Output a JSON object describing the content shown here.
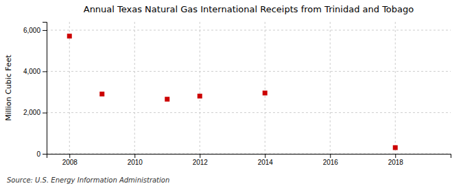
{
  "chart_data": {
    "type": "scatter",
    "title": "Annual Texas Natural Gas International Receipts from Trinidad and Tobago",
    "ylabel": "Million Cubic Feet",
    "source": "Source: U.S. Energy Information Administration",
    "x": [
      2008,
      2009,
      2011,
      2012,
      2014,
      2018
    ],
    "values": [
      5710,
      2900,
      2650,
      2800,
      2950,
      300
    ],
    "xlim": [
      2007.3,
      2019.7
    ],
    "ylim": [
      0,
      6400
    ],
    "xticks": [
      2008,
      2010,
      2012,
      2014,
      2016,
      2018
    ],
    "yticks": [
      0,
      {
        "value": 2000,
        "label": "2,000"
      },
      {
        "value": 4000,
        "label": "4,000"
      },
      {
        "value": 6000,
        "label": "6,000"
      }
    ],
    "color": "#cc0000",
    "marker": "square",
    "grid": true
  }
}
